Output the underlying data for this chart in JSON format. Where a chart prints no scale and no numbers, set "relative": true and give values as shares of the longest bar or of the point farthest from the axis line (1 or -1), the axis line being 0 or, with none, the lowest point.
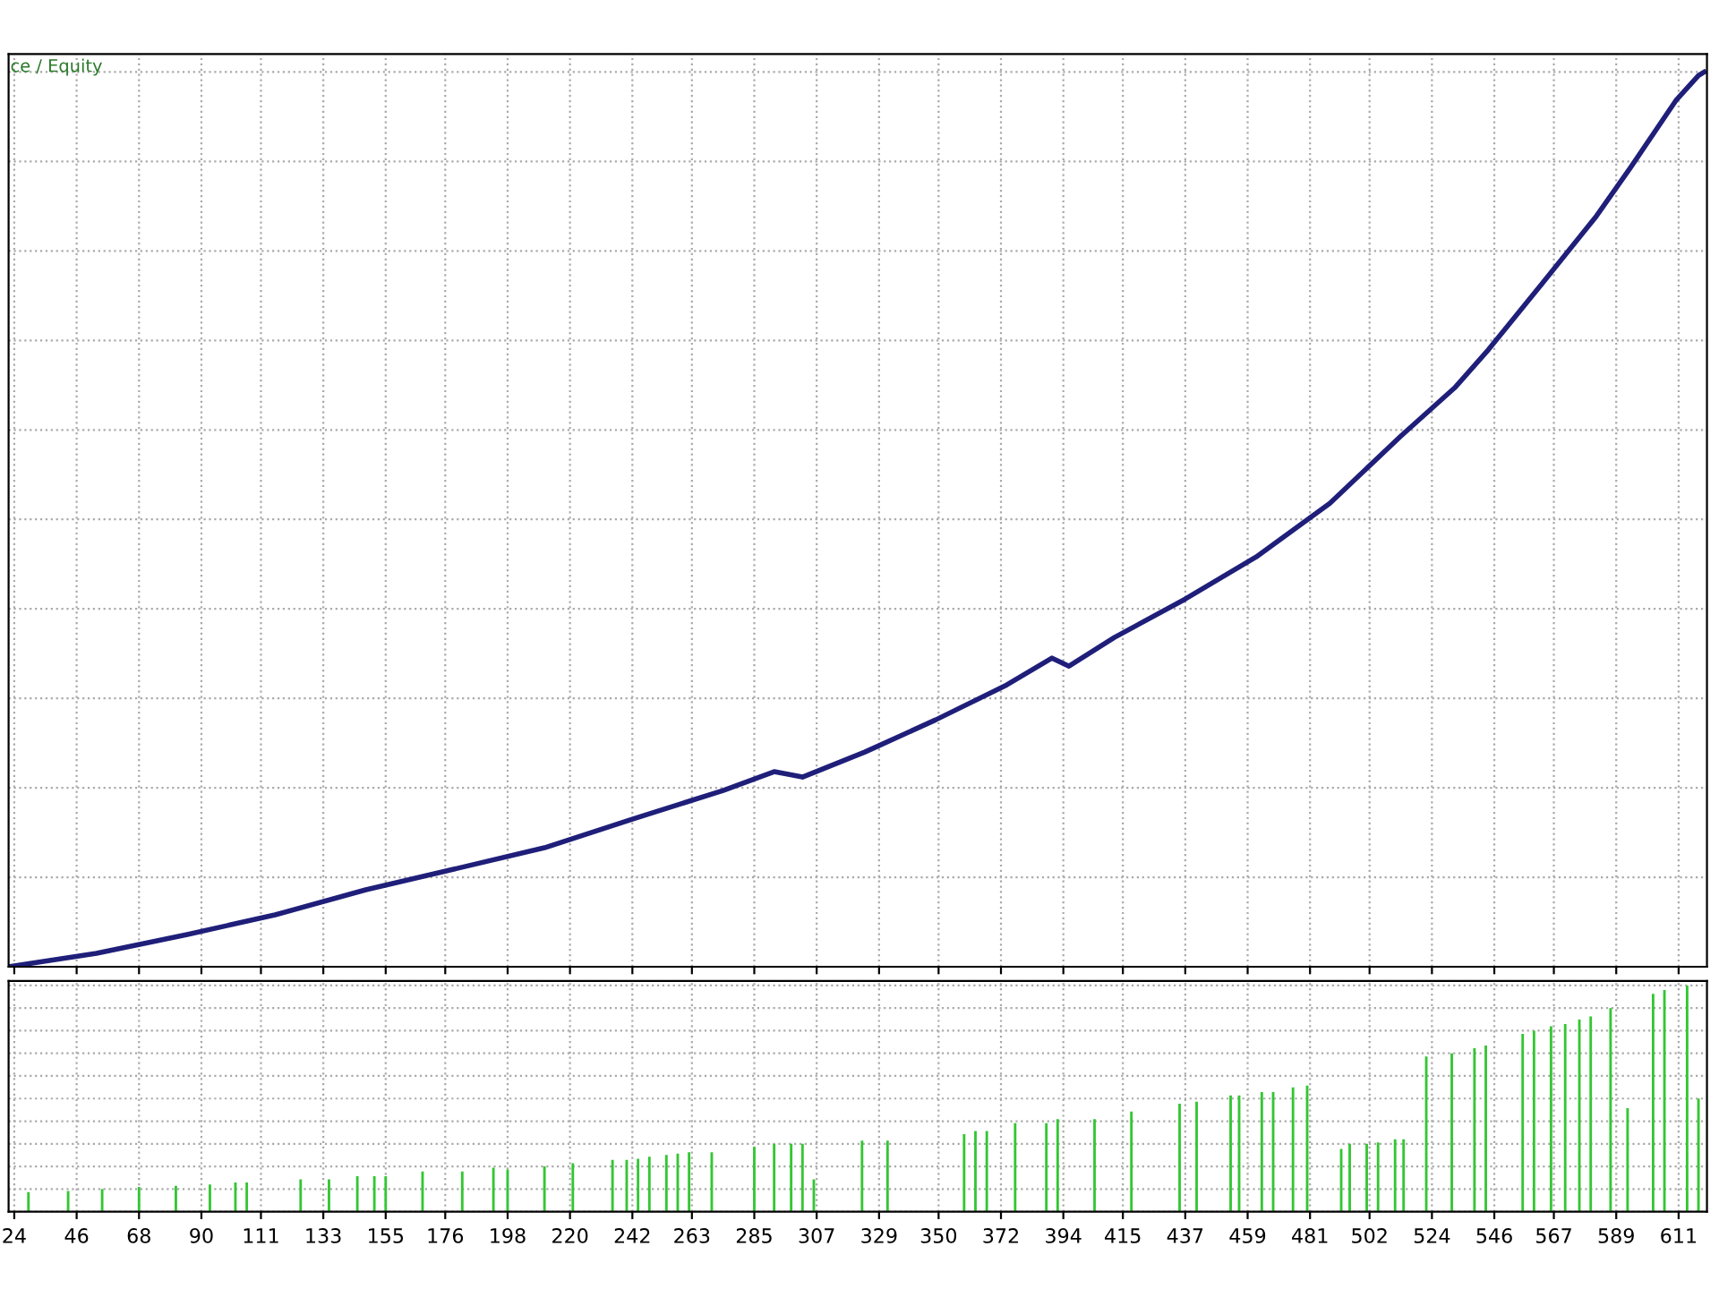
{
  "chart_data": [
    {
      "type": "line",
      "relative": true,
      "tick_labels": false,
      "grid": true,
      "line_style": "solid",
      "xlim": [
        22,
        621
      ],
      "annotations": [
        "ce / Equity"
      ],
      "series": [
        {
          "color": "#1f1f7a",
          "x": [
            22,
            53,
            85,
            116,
            148,
            179,
            211,
            242,
            274,
            292,
            302,
            324,
            349,
            374,
            390,
            396,
            412,
            437,
            462,
            488,
            513,
            532,
            544,
            563,
            582,
            594,
            610,
            618,
            620
          ],
          "values": [
            0,
            0.015,
            0.036,
            0.058,
            0.086,
            0.109,
            0.133,
            0.165,
            0.197,
            0.218,
            0.212,
            0.24,
            0.276,
            0.315,
            0.345,
            0.336,
            0.368,
            0.411,
            0.458,
            0.518,
            0.593,
            0.647,
            0.69,
            0.764,
            0.839,
            0.893,
            0.968,
            0.996,
            1
          ]
        }
      ]
    },
    {
      "type": "bar",
      "relative": true,
      "tick_labels": "x",
      "grid": true,
      "xlim": [
        22,
        621
      ],
      "xticks": [
        24,
        46,
        68,
        90,
        111,
        133,
        155,
        176,
        198,
        220,
        242,
        263,
        285,
        307,
        329,
        350,
        372,
        394,
        415,
        437,
        459,
        481,
        502,
        524,
        546,
        567,
        589,
        611
      ],
      "series": [
        {
          "color": "#33c633",
          "x": [
            29,
            43,
            55,
            68,
            81,
            93,
            102,
            106,
            125,
            135,
            145,
            151,
            155,
            168,
            182,
            193,
            198,
            211,
            221,
            235,
            240,
            244,
            248,
            254,
            258,
            262,
            270,
            285,
            292,
            298,
            302,
            306,
            323,
            332,
            359,
            363,
            367,
            377,
            388,
            392,
            405,
            418,
            435,
            441,
            453,
            456,
            464,
            468,
            475,
            480,
            492,
            495,
            501,
            505,
            511,
            514,
            522,
            531,
            539,
            543,
            556,
            560,
            566,
            571,
            576,
            580,
            587,
            593,
            602,
            606,
            614,
            618
          ],
          "values": [
            0.086,
            0.091,
            0.1,
            0.109,
            0.114,
            0.12,
            0.129,
            0.129,
            0.143,
            0.143,
            0.157,
            0.157,
            0.157,
            0.177,
            0.177,
            0.194,
            0.186,
            0.2,
            0.214,
            0.229,
            0.229,
            0.234,
            0.243,
            0.251,
            0.257,
            0.263,
            0.263,
            0.286,
            0.3,
            0.3,
            0.3,
            0.143,
            0.314,
            0.314,
            0.343,
            0.357,
            0.357,
            0.391,
            0.391,
            0.409,
            0.409,
            0.443,
            0.477,
            0.486,
            0.514,
            0.514,
            0.529,
            0.529,
            0.549,
            0.557,
            0.277,
            0.3,
            0.3,
            0.306,
            0.32,
            0.32,
            0.686,
            0.7,
            0.723,
            0.734,
            0.786,
            0.8,
            0.82,
            0.829,
            0.849,
            0.863,
            0.9,
            0.457,
            0.963,
            0.98,
            1,
            0.5
          ]
        }
      ]
    }
  ]
}
